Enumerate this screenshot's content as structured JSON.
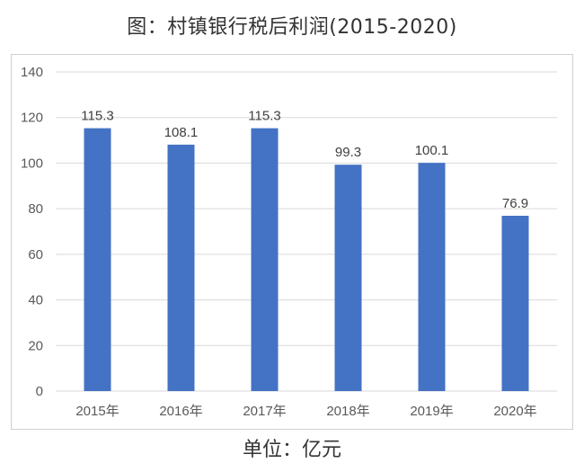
{
  "header": {
    "title": "图：村镇银行税后利润(2015-2020)"
  },
  "footer": {
    "unit_label": "单位：亿元"
  },
  "colors": {
    "bar": "#4472C4",
    "grid": "#d9d9d9",
    "axis_text": "#595959",
    "data_label": "#404040"
  },
  "chart_data": {
    "type": "bar",
    "categories": [
      "2015年",
      "2016年",
      "2017年",
      "2018年",
      "2019年",
      "2020年"
    ],
    "values": [
      115.3,
      108.1,
      115.3,
      99.3,
      100.1,
      76.9
    ],
    "data_labels": [
      "115.3",
      "108.1",
      "115.3",
      "99.3",
      "100.1",
      "76.9"
    ],
    "y_ticks": [
      0,
      20,
      40,
      60,
      80,
      100,
      120,
      140
    ],
    "ylim": [
      0,
      140
    ],
    "grid": true,
    "legend": "none"
  }
}
